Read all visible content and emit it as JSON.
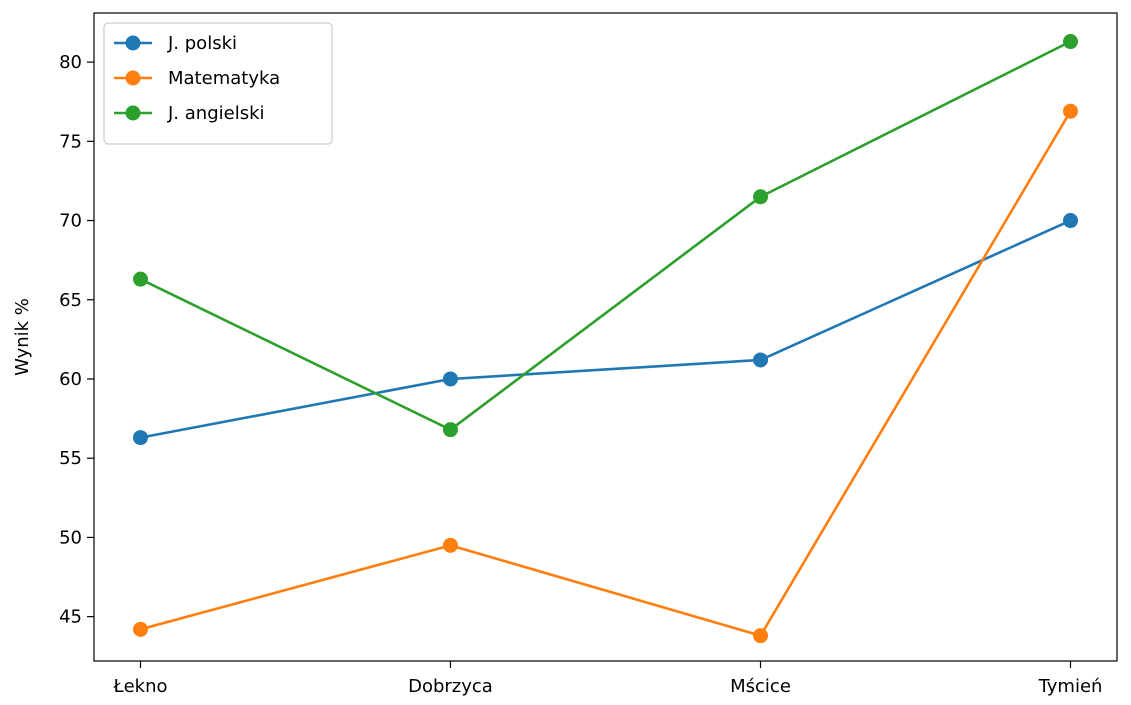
{
  "chart_data": {
    "type": "line",
    "title": "",
    "xlabel": "",
    "ylabel": "Wynik %",
    "categories": [
      "Łekno",
      "Dobrzyca",
      "Mścice",
      "Tymień"
    ],
    "ylim": [
      42.2,
      83.1
    ],
    "yticks": [
      45,
      50,
      55,
      60,
      65,
      70,
      75,
      80
    ],
    "grid": false,
    "legend_position": "upper-left",
    "series": [
      {
        "name": "J. polski",
        "color": "#1f77b4",
        "values": [
          56.3,
          60.0,
          61.2,
          70.0
        ]
      },
      {
        "name": "Matematyka",
        "color": "#ff7f0e",
        "values": [
          44.2,
          49.5,
          43.8,
          76.9
        ]
      },
      {
        "name": "J. angielski",
        "color": "#2ca02c",
        "values": [
          66.3,
          56.8,
          71.5,
          81.3
        ]
      }
    ]
  }
}
